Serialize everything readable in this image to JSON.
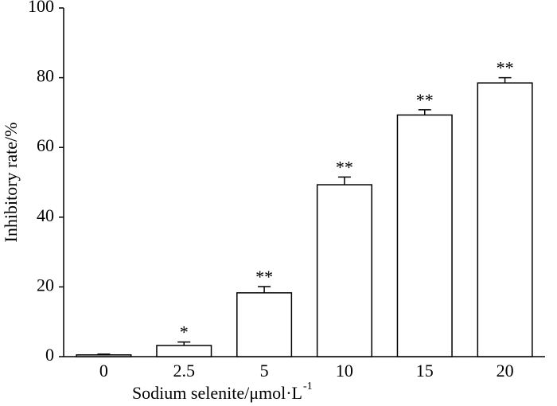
{
  "chart_data": {
    "type": "bar",
    "ylabel": "Inhibitory rate/%",
    "xlabel": "Sodium selenite/μmol·L",
    "xlabel_superscript": "-1",
    "categories": [
      "0",
      "2.5",
      "5",
      "10",
      "15",
      "20"
    ],
    "values": [
      0.5,
      3.2,
      18.3,
      49.3,
      69.3,
      78.5
    ],
    "errors": [
      0.2,
      1.0,
      1.8,
      2.2,
      1.5,
      1.5
    ],
    "annotations": [
      null,
      "*",
      "**",
      "**",
      "**",
      "**"
    ],
    "color": "#ffffff",
    "ylim": [
      0,
      100
    ],
    "yticks": [
      0,
      20,
      40,
      60,
      80,
      100
    ]
  }
}
